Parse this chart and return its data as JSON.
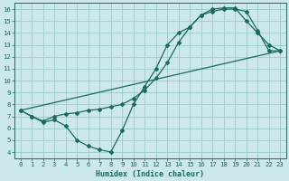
{
  "title": "",
  "xlabel": "Humidex (Indice chaleur)",
  "bg_color": "#cce8e8",
  "grid_color": "#99cccc",
  "line_color": "#1a6b5a",
  "xlim": [
    -0.5,
    23.5
  ],
  "ylim": [
    3.5,
    16.5
  ],
  "xticks": [
    0,
    1,
    2,
    3,
    4,
    5,
    6,
    7,
    8,
    9,
    10,
    11,
    12,
    13,
    14,
    15,
    16,
    17,
    18,
    19,
    20,
    21,
    22,
    23
  ],
  "yticks": [
    4,
    5,
    6,
    7,
    8,
    9,
    10,
    11,
    12,
    13,
    14,
    15,
    16
  ],
  "line1_x": [
    0,
    1,
    2,
    3,
    4,
    5,
    6,
    7,
    8,
    9,
    10,
    11,
    12,
    13,
    14,
    15,
    16,
    17,
    18,
    19,
    20,
    21,
    22,
    23
  ],
  "line1_y": [
    7.5,
    7.0,
    6.5,
    6.7,
    6.2,
    5.0,
    4.5,
    4.2,
    4.0,
    5.8,
    8.0,
    9.5,
    11.0,
    13.0,
    14.0,
    14.5,
    15.5,
    16.0,
    16.1,
    16.1,
    15.0,
    14.0,
    13.0,
    12.5
  ],
  "line2_x": [
    0,
    1,
    2,
    3,
    4,
    5,
    6,
    7,
    8,
    9,
    10,
    11,
    12,
    13,
    14,
    15,
    16,
    17,
    18,
    19,
    20,
    21,
    22,
    23
  ],
  "line2_y": [
    7.5,
    7.0,
    6.6,
    7.0,
    7.2,
    7.3,
    7.5,
    7.6,
    7.8,
    8.0,
    8.5,
    9.2,
    10.2,
    11.5,
    13.2,
    14.5,
    15.5,
    15.8,
    16.0,
    16.0,
    15.8,
    14.2,
    12.5,
    12.5
  ],
  "line3_x": [
    0,
    23
  ],
  "line3_y": [
    7.5,
    12.5
  ],
  "xlabel_fontsize": 6.0,
  "tick_fontsize": 5.2
}
